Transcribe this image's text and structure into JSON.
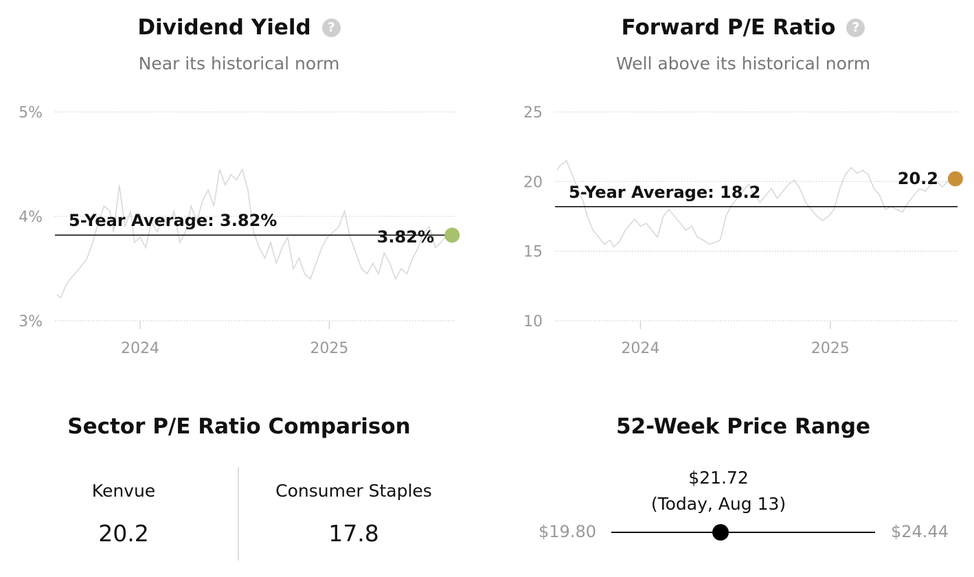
{
  "dividend": {
    "title": "Dividend Yield",
    "subtitle": "Near its historical norm",
    "help_icon": "question-circle-icon",
    "avg_label": "5-Year Average: 3.82%",
    "current_label": "3.82%",
    "marker_color": "#a7c26a"
  },
  "pe": {
    "title": "Forward P/E Ratio",
    "subtitle": "Well above its historical norm",
    "help_icon": "question-circle-icon",
    "avg_label": "5-Year Average: 18.2",
    "current_label": "20.2",
    "marker_color": "#c9913a"
  },
  "sector": {
    "title": "Sector P/E Ratio Comparison",
    "left_name": "Kenvue",
    "left_value": "20.2",
    "right_name": "Consumer Staples",
    "right_value": "17.8"
  },
  "range": {
    "title": "52-Week Price Range",
    "current_price": "$21.72",
    "current_note": "(Today, Aug 13)",
    "low_label": "$19.80",
    "high_label": "$24.44",
    "low": 19.8,
    "high": 24.44,
    "current": 21.72
  },
  "chart_data": [
    {
      "type": "line",
      "ylim": [
        3,
        5
      ],
      "yticks": [
        3,
        4,
        5
      ],
      "ytick_labels": [
        "3%",
        "4%",
        "5%"
      ],
      "xlim": [
        2023.55,
        2025.67
      ],
      "xticks": [
        2024,
        2025
      ],
      "xtick_labels": [
        "2024",
        "2025"
      ],
      "average": 3.82,
      "current": {
        "x": 2025.62,
        "y": 3.82
      },
      "grid": "dotted horizontal",
      "series": [
        {
          "color": "#d9d9d9",
          "x": [
            2023.56,
            2023.58,
            2023.61,
            2023.64,
            2023.67,
            2023.7,
            2023.72,
            2023.75,
            2023.78,
            2023.81,
            2023.84,
            2023.86,
            2023.89,
            2023.92,
            2023.95,
            2023.97,
            2024.0,
            2024.03,
            2024.06,
            2024.09,
            2024.12,
            2024.15,
            2024.18,
            2024.21,
            2024.24,
            2024.27,
            2024.3,
            2024.33,
            2024.36,
            2024.39,
            2024.42,
            2024.45,
            2024.48,
            2024.51,
            2024.54,
            2024.57,
            2024.6,
            2024.63,
            2024.66,
            2024.69,
            2024.72,
            2024.75,
            2024.78,
            2024.81,
            2024.84,
            2024.87,
            2024.9,
            2024.93,
            2024.96,
            2024.99,
            2025.02,
            2025.05,
            2025.08,
            2025.11,
            2025.14,
            2025.17,
            2025.2,
            2025.23,
            2025.26,
            2025.29,
            2025.32,
            2025.35,
            2025.38,
            2025.41,
            2025.44,
            2025.47,
            2025.5,
            2025.53,
            2025.56,
            2025.59,
            2025.62
          ],
          "y": [
            3.25,
            3.22,
            3.35,
            3.42,
            3.48,
            3.55,
            3.6,
            3.75,
            3.95,
            4.1,
            4.05,
            3.85,
            4.3,
            3.9,
            4.05,
            3.75,
            3.8,
            3.7,
            3.95,
            3.85,
            4.0,
            3.9,
            4.05,
            3.75,
            3.85,
            4.1,
            3.95,
            4.15,
            4.25,
            4.1,
            4.45,
            4.3,
            4.4,
            4.35,
            4.45,
            4.25,
            3.85,
            3.7,
            3.6,
            3.75,
            3.55,
            3.7,
            3.8,
            3.5,
            3.6,
            3.45,
            3.4,
            3.55,
            3.7,
            3.8,
            3.85,
            3.9,
            4.05,
            3.8,
            3.65,
            3.5,
            3.45,
            3.55,
            3.45,
            3.65,
            3.55,
            3.4,
            3.5,
            3.45,
            3.6,
            3.7,
            3.85,
            3.9,
            3.7,
            3.75,
            3.82
          ]
        }
      ]
    },
    {
      "type": "line",
      "ylim": [
        10,
        25
      ],
      "yticks": [
        10,
        15,
        20,
        25
      ],
      "ytick_labels": [
        "10",
        "15",
        "20",
        "25"
      ],
      "xlim": [
        2023.55,
        2025.67
      ],
      "xticks": [
        2024,
        2025
      ],
      "xtick_labels": [
        "2024",
        "2025"
      ],
      "average": 18.2,
      "current": {
        "x": 2025.63,
        "y": 20.2
      },
      "grid": "dotted horizontal",
      "series": [
        {
          "color": "#d9d9d9",
          "x": [
            2023.56,
            2023.58,
            2023.61,
            2023.64,
            2023.67,
            2023.7,
            2023.72,
            2023.75,
            2023.78,
            2023.81,
            2023.84,
            2023.86,
            2023.89,
            2023.92,
            2023.95,
            2023.97,
            2024.0,
            2024.03,
            2024.06,
            2024.09,
            2024.12,
            2024.15,
            2024.18,
            2024.21,
            2024.24,
            2024.27,
            2024.3,
            2024.33,
            2024.36,
            2024.39,
            2024.42,
            2024.45,
            2024.48,
            2024.51,
            2024.54,
            2024.57,
            2024.6,
            2024.63,
            2024.66,
            2024.69,
            2024.72,
            2024.75,
            2024.78,
            2024.81,
            2024.84,
            2024.87,
            2024.9,
            2024.93,
            2024.96,
            2024.99,
            2025.02,
            2025.05,
            2025.08,
            2025.11,
            2025.14,
            2025.17,
            2025.2,
            2025.23,
            2025.26,
            2025.29,
            2025.32,
            2025.35,
            2025.38,
            2025.41,
            2025.44,
            2025.47,
            2025.5,
            2025.53,
            2025.56,
            2025.59,
            2025.63
          ],
          "y": [
            20.8,
            21.2,
            21.5,
            20.5,
            19.5,
            18.5,
            17.5,
            16.5,
            16.0,
            15.5,
            15.8,
            15.3,
            15.7,
            16.5,
            17.0,
            17.3,
            16.8,
            17.0,
            16.5,
            16.0,
            17.5,
            18.0,
            17.5,
            17.0,
            16.5,
            16.8,
            16.0,
            15.8,
            15.5,
            15.6,
            15.8,
            17.5,
            18.3,
            18.8,
            19.3,
            19.8,
            19.0,
            18.5,
            19.0,
            19.5,
            18.8,
            19.3,
            19.8,
            20.1,
            19.5,
            18.5,
            18.0,
            17.5,
            17.2,
            17.5,
            18.0,
            19.5,
            20.5,
            21.0,
            20.6,
            20.8,
            20.5,
            19.5,
            19.0,
            18.0,
            18.2,
            18.0,
            17.8,
            18.5,
            19.0,
            19.5,
            19.3,
            19.8,
            20.0,
            19.6,
            20.2
          ]
        }
      ]
    }
  ]
}
